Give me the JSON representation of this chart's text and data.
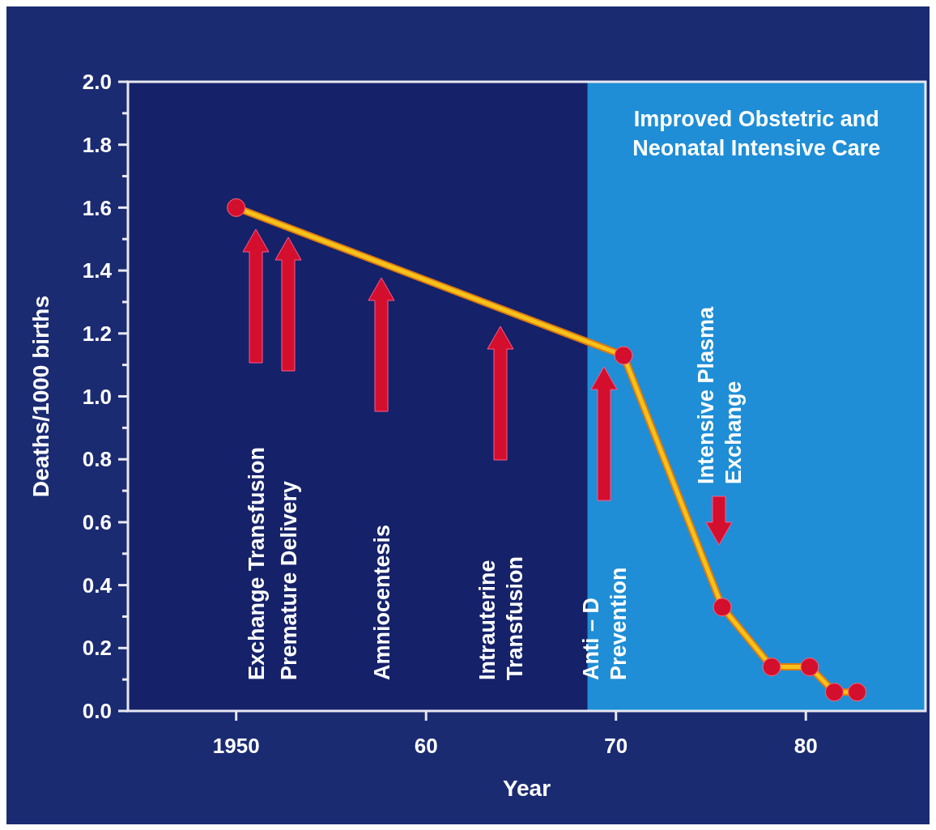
{
  "chart_data": {
    "type": "line",
    "xlabel": "Year",
    "ylabel": "Deaths/1000 births",
    "x": [
      1950,
      1970.4,
      1975.6,
      1978.2,
      1980.2,
      1981.5,
      1982.7
    ],
    "series": [
      {
        "color": "#f5c21b",
        "values": [
          1.6,
          1.13,
          0.33,
          0.14,
          0.14,
          0.06,
          0.06
        ]
      }
    ],
    "marker": "circle",
    "xlim": [
      1944.3,
      1986.3
    ],
    "xticks": [
      {
        "value": 1950,
        "label": "1950"
      },
      {
        "value": 1960,
        "label": "60"
      },
      {
        "value": 1970,
        "label": "70"
      },
      {
        "value": 1980,
        "label": "80"
      }
    ],
    "ylim": [
      0,
      2
    ],
    "yticks": [
      {
        "value": 0,
        "label": "0.0"
      },
      {
        "value": 0.1,
        "label": null
      },
      {
        "value": 0.2,
        "label": "0.2"
      },
      {
        "value": 0.3,
        "label": null
      },
      {
        "value": 0.4,
        "label": "0.4"
      },
      {
        "value": 0.5,
        "label": null
      },
      {
        "value": 0.6,
        "label": "0.6"
      },
      {
        "value": 0.7,
        "label": null
      },
      {
        "value": 0.8,
        "label": "0.8"
      },
      {
        "value": 0.9,
        "label": null
      },
      {
        "value": 1,
        "label": "1.0"
      },
      {
        "value": 1.1,
        "label": null
      },
      {
        "value": 1.2,
        "label": "1.2"
      },
      {
        "value": 1.3,
        "label": null
      },
      {
        "value": 1.4,
        "label": "1.4"
      },
      {
        "value": 1.5,
        "label": null
      },
      {
        "value": 1.6,
        "label": "1.6"
      },
      {
        "value": 1.7,
        "label": null
      },
      {
        "value": 1.8,
        "label": "1.8"
      },
      {
        "value": 1.9,
        "label": null
      },
      {
        "value": 2,
        "label": "2.0"
      }
    ],
    "bands": [
      {
        "axis": "x",
        "from": 1968.5,
        "to": 1986.3,
        "label": "Improved Obstetric and\nNeonatal Intensive Care",
        "color": "#1f8ed6"
      }
    ],
    "annotations": [
      "Exchange Transfusion",
      "Premature Delivery",
      "Amniocentesis",
      "Intrauterine\nTransfusion",
      "Anti – D\nPrevention",
      "Intensive Plasma\nExchange"
    ],
    "grid": false
  }
}
